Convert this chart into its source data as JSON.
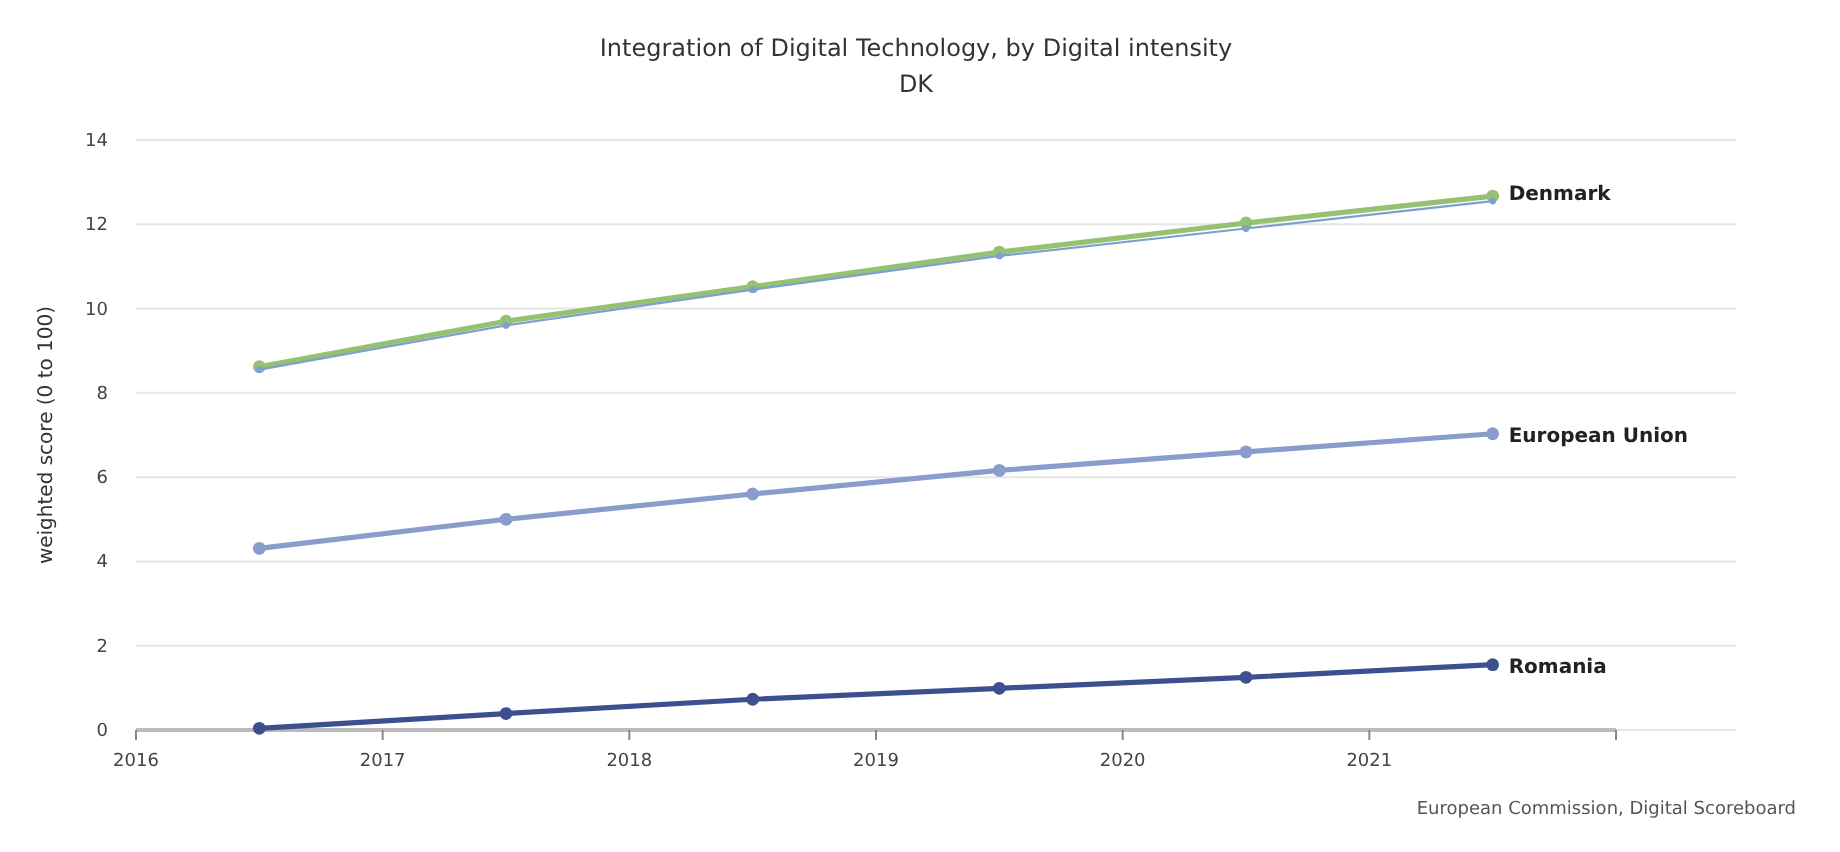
{
  "chart_data": {
    "type": "line",
    "title": "Integration of Digital Technology, by Digital intensity",
    "subtitle": "DK",
    "ylabel": "weighted score (0 to 100)",
    "x": [
      2016.5,
      2017.5,
      2018.5,
      2019.5,
      2020.5,
      2021.5
    ],
    "xlim": [
      2016,
      2022
    ],
    "xticks": [
      {
        "value": 2016,
        "label": "2016"
      },
      {
        "value": 2017,
        "label": "2017"
      },
      {
        "value": 2018,
        "label": "2018"
      },
      {
        "value": 2019,
        "label": "2019"
      },
      {
        "value": 2020,
        "label": "2020"
      },
      {
        "value": 2021,
        "label": "2021"
      },
      {
        "value": 2022,
        "label": null
      }
    ],
    "ylim": [
      0,
      14
    ],
    "yticks": [
      0,
      2,
      4,
      6,
      8,
      10,
      12,
      14
    ],
    "grid": "y",
    "marker": "circle",
    "line_style": "solid",
    "legend": false,
    "series": [
      {
        "color": "#7f9fd2",
        "values": [
          8.55,
          9.6,
          10.45,
          11.25,
          11.9,
          12.55
        ]
      },
      {
        "name": "Denmark",
        "color": "#94c270",
        "values": [
          8.62,
          9.7,
          10.52,
          11.34,
          12.03,
          12.67
        ]
      },
      {
        "name": "European Union",
        "color": "#8a9ccc",
        "values": [
          4.31,
          5.0,
          5.6,
          6.16,
          6.6,
          7.03
        ]
      },
      {
        "name": "Romania",
        "color": "#3d4f8f",
        "values": [
          0.04,
          0.39,
          0.73,
          0.99,
          1.25,
          1.55
        ]
      }
    ],
    "annotations": [
      "European Commission, Digital Scoreboard"
    ]
  }
}
